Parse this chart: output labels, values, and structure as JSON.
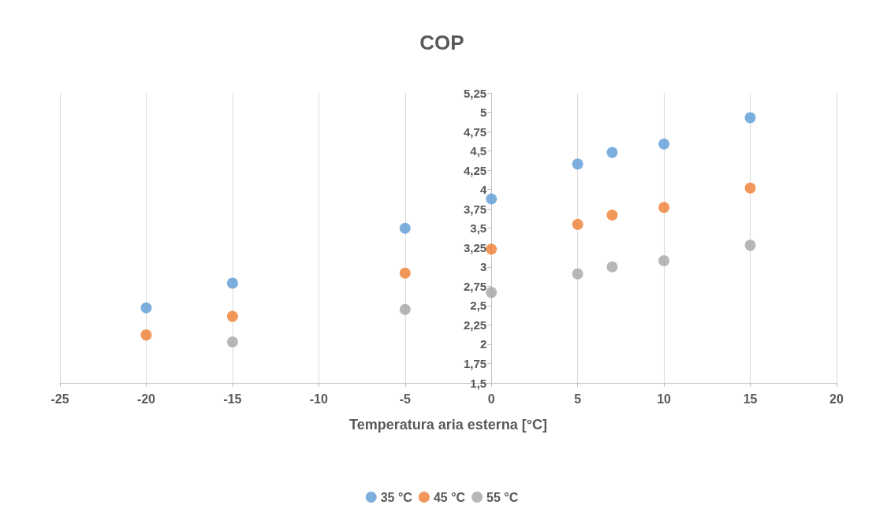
{
  "chart_data": {
    "type": "scatter",
    "title": "COP",
    "xlabel": "Temperatura aria esterna [°C]",
    "xlim": [
      -25,
      20
    ],
    "xticks": [
      -25,
      -20,
      -15,
      -10,
      -5,
      0,
      5,
      10,
      15,
      20
    ],
    "ylim": [
      1.5,
      5.25
    ],
    "yticks": [
      {
        "value": 1.5,
        "label": "1,5"
      },
      {
        "value": 1.75,
        "label": "1,75"
      },
      {
        "value": 2,
        "label": "2"
      },
      {
        "value": 2.25,
        "label": "2,25"
      },
      {
        "value": 2.5,
        "label": "2,5"
      },
      {
        "value": 2.75,
        "label": "2,75"
      },
      {
        "value": 3,
        "label": "3"
      },
      {
        "value": 3.25,
        "label": "3,25"
      },
      {
        "value": 3.5,
        "label": "3,5"
      },
      {
        "value": 3.75,
        "label": "3,75"
      },
      {
        "value": 4,
        "label": "4"
      },
      {
        "value": 4.25,
        "label": "4,25"
      },
      {
        "value": 4.5,
        "label": "4,5"
      },
      {
        "value": 4.75,
        "label": "4,75"
      },
      {
        "value": 5,
        "label": "5"
      },
      {
        "value": 5.25,
        "label": "5,25"
      }
    ],
    "grid": "x",
    "legend": "bottom",
    "marker": "circle",
    "series": [
      {
        "name": "35 °C",
        "color": "#5b9bd5",
        "x": [
          -20,
          -15,
          -5,
          0,
          5,
          7,
          10,
          15
        ],
        "values": [
          2.47,
          2.79,
          3.5,
          3.88,
          4.33,
          4.48,
          4.59,
          4.93
        ]
      },
      {
        "name": "45 °C",
        "color": "#ed7d31",
        "x": [
          -20,
          -15,
          -5,
          0,
          5,
          7,
          10,
          15
        ],
        "values": [
          2.12,
          2.36,
          2.92,
          3.23,
          3.55,
          3.67,
          3.77,
          4.02
        ]
      },
      {
        "name": "55 °C",
        "color": "#a5a5a5",
        "x": [
          -15,
          -5,
          0,
          5,
          7,
          10,
          15
        ],
        "values": [
          2.03,
          2.45,
          2.67,
          2.91,
          3.0,
          3.08,
          3.28
        ]
      }
    ]
  }
}
